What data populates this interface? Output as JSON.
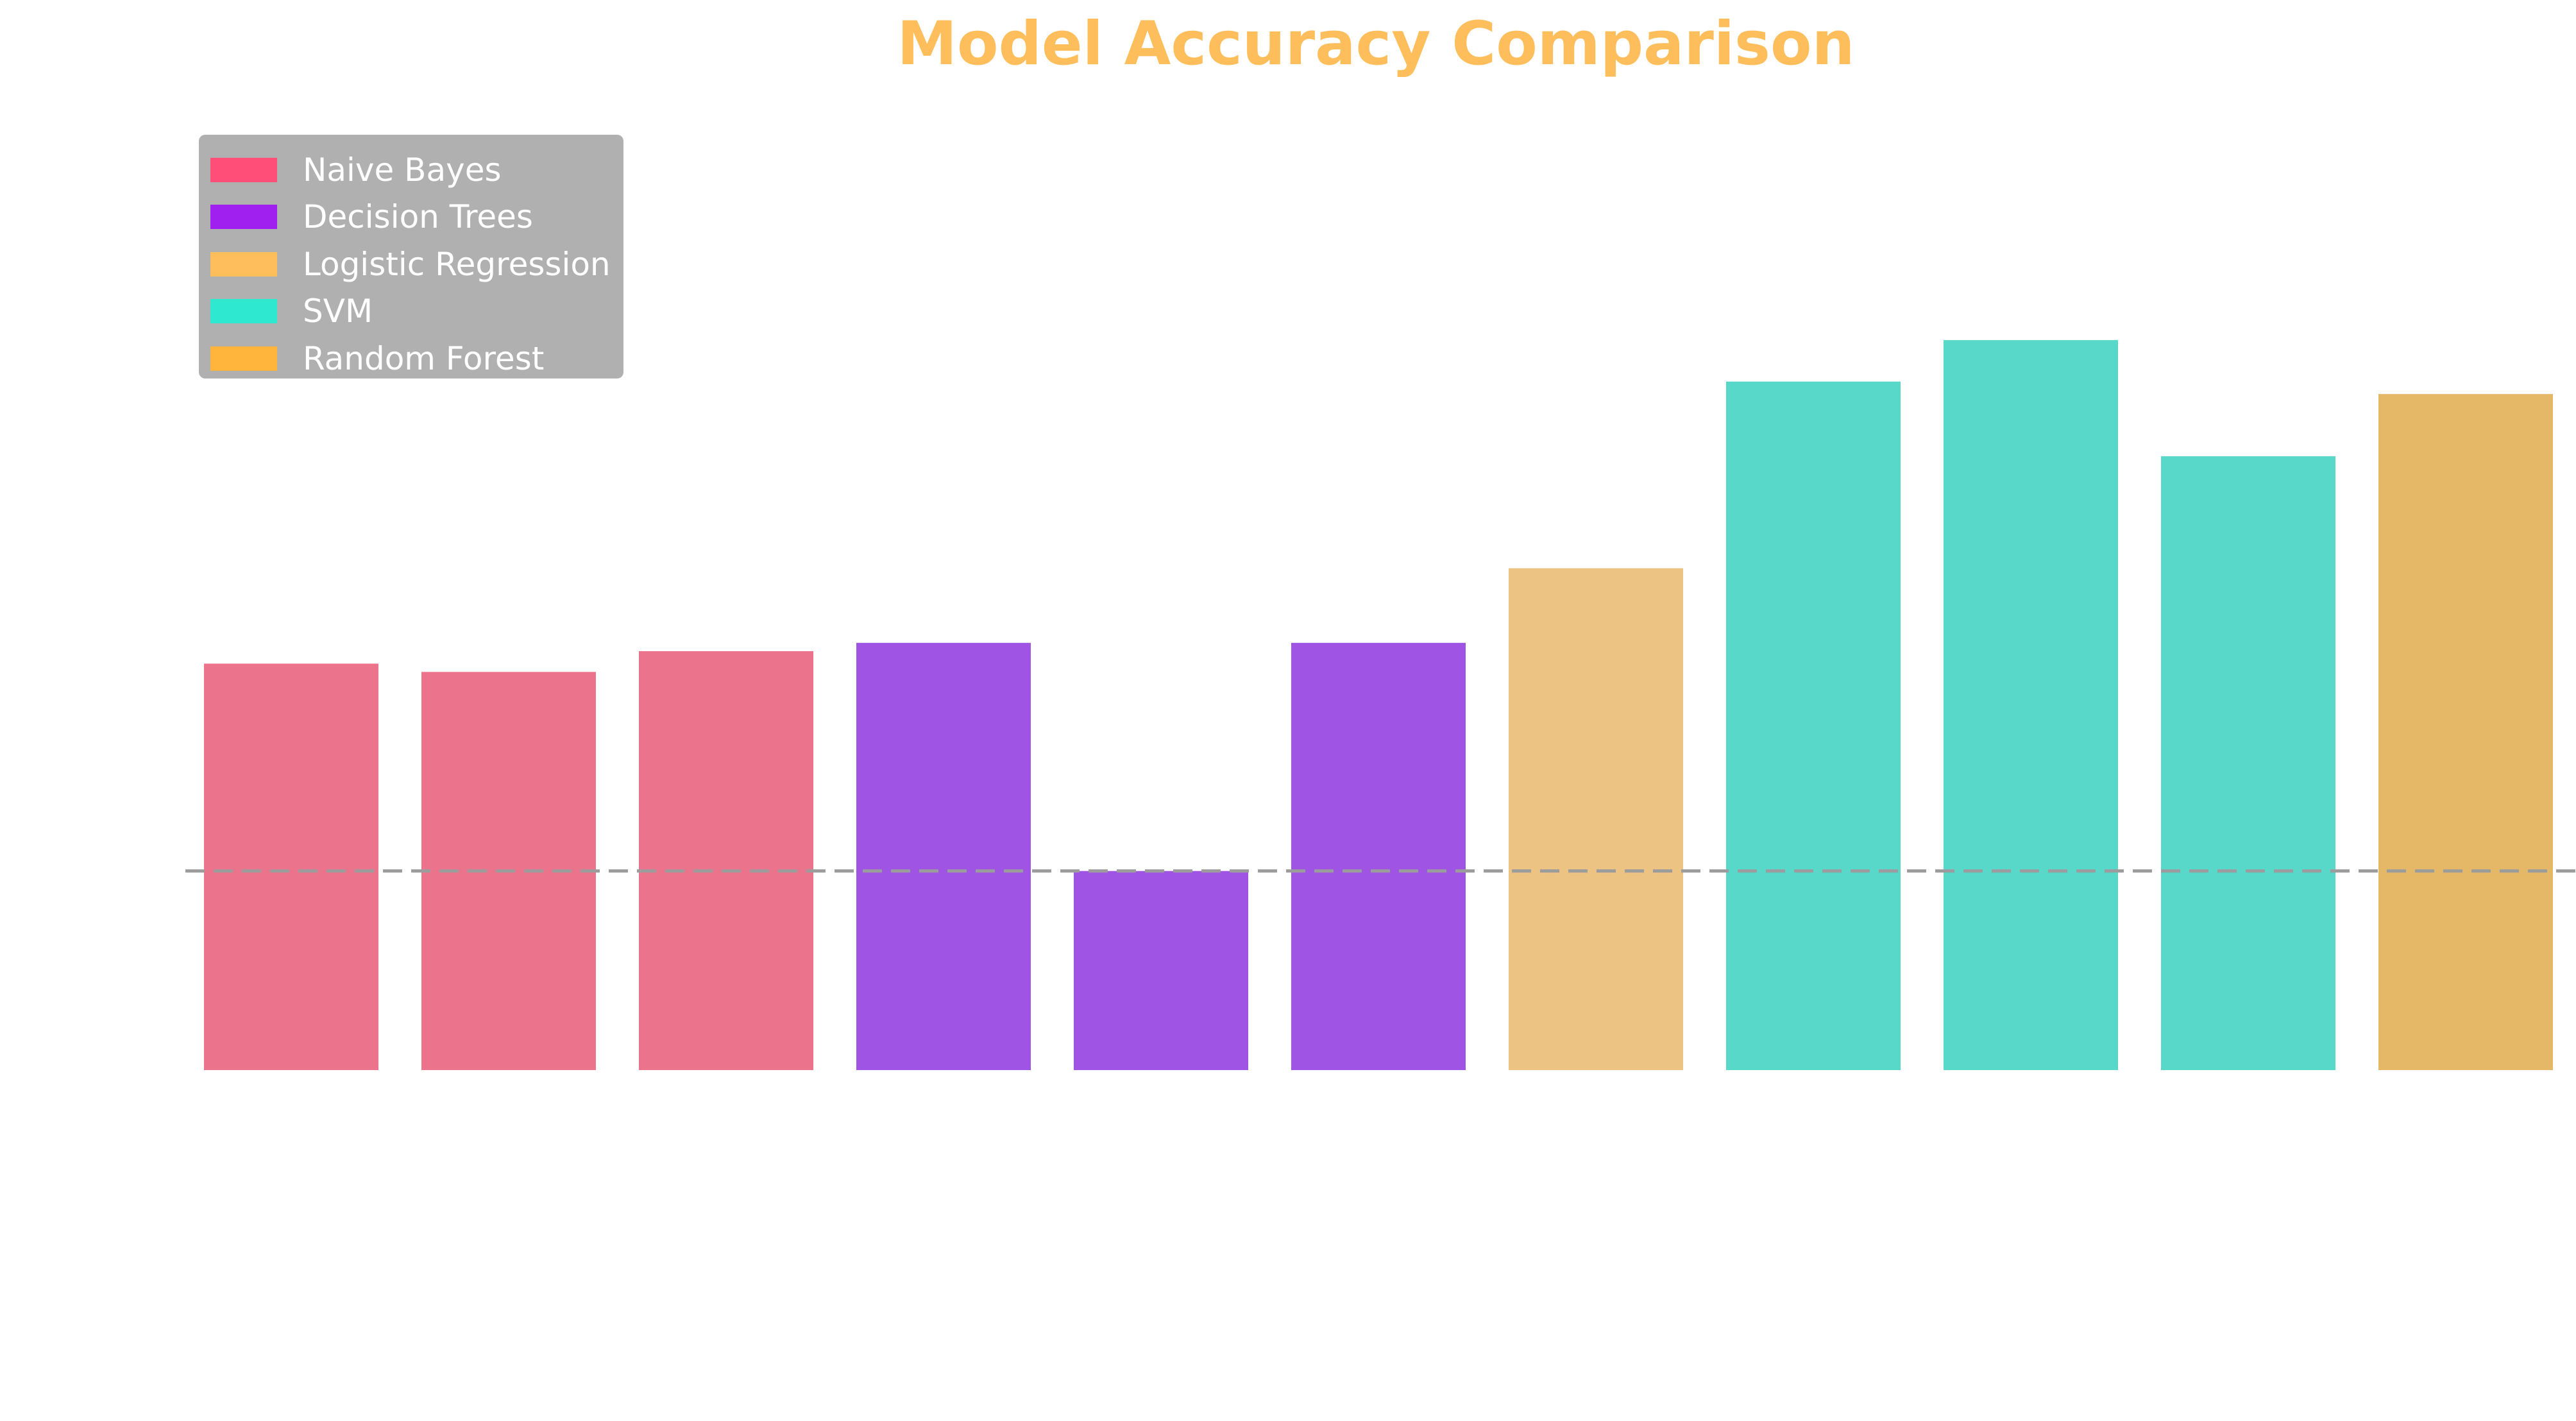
{
  "colors": {
    "title": "#ffbe5c",
    "reference_line": "#9c9c9c",
    "legend_bg": "#b0b0b0",
    "legend_text": "#ffffff"
  },
  "chart_data": {
    "type": "bar",
    "title": "Model Accuracy Comparison",
    "xlabel": "",
    "ylabel": "",
    "grid": false,
    "axes_visible": false,
    "legend_placement": "top-left",
    "legend": [
      {
        "label": "Naive Bayes",
        "color": "#ff4f78"
      },
      {
        "label": "Decision Trees",
        "color": "#a020f0"
      },
      {
        "label": "Logistic Regression",
        "color": "#ffbe5c"
      },
      {
        "label": "SVM",
        "color": "#2ee8cf"
      },
      {
        "label": "Random Forest",
        "color": "#ffb43c"
      }
    ],
    "bars": [
      {
        "model": "Naive Bayes",
        "value": 0.84,
        "color": "#ec738c"
      },
      {
        "model": "Naive Bayes",
        "value": 0.838,
        "color": "#ec738c"
      },
      {
        "model": "Naive Bayes",
        "value": 0.843,
        "color": "#ec738c"
      },
      {
        "model": "Decision Trees",
        "value": 0.845,
        "color": "#9f54e3"
      },
      {
        "model": "Decision Trees",
        "value": 0.79,
        "color": "#9f54e3"
      },
      {
        "model": "Decision Trees",
        "value": 0.845,
        "color": "#9f54e3"
      },
      {
        "model": "Logistic Regression",
        "value": 0.863,
        "color": "#ecc383"
      },
      {
        "model": "SVM",
        "value": 0.908,
        "color": "#58d8c9"
      },
      {
        "model": "SVM",
        "value": 0.918,
        "color": "#58d8c9"
      },
      {
        "model": "SVM",
        "value": 0.89,
        "color": "#58d8c9"
      },
      {
        "model": "Random Forest",
        "value": 0.905,
        "color": "#e5b867"
      }
    ],
    "ylim": [
      0.742,
      1.0
    ],
    "reference_line": 0.79,
    "reference_style": "dashed"
  }
}
